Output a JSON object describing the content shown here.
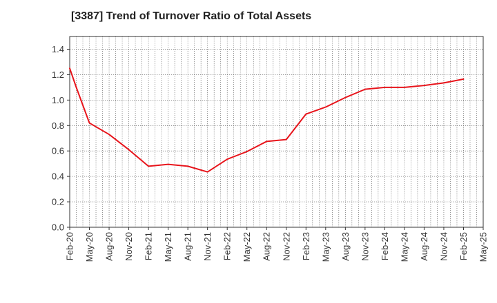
{
  "chart_data": {
    "type": "line",
    "title": "[3387]  Trend of Turnover Ratio of Total Assets",
    "xlabel": "",
    "ylabel": "",
    "ylim": [
      0,
      1.5
    ],
    "yticks": [
      "0.0",
      "0.2",
      "0.4",
      "0.6",
      "0.8",
      "1.0",
      "1.2",
      "1.4"
    ],
    "xticks": [
      "Feb-20",
      "May-20",
      "Aug-20",
      "Nov-20",
      "Feb-21",
      "May-21",
      "Aug-21",
      "Nov-21",
      "Feb-22",
      "May-22",
      "Aug-22",
      "Nov-22",
      "Feb-23",
      "May-23",
      "Aug-23",
      "Nov-23",
      "Feb-24",
      "May-24",
      "Aug-24",
      "Nov-24",
      "Feb-25",
      "May-25"
    ],
    "grid": true,
    "legend": "none",
    "series": [
      {
        "color": "#e8141b",
        "x": [
          "Feb-20",
          "Mar-20",
          "May-20",
          "Aug-20",
          "Nov-20",
          "Feb-21",
          "May-21",
          "Aug-21",
          "Nov-21",
          "Feb-22",
          "May-22",
          "Aug-22",
          "Nov-22",
          "Feb-23",
          "May-23",
          "Aug-23",
          "Nov-23",
          "Feb-24",
          "May-24",
          "Aug-24",
          "Nov-24",
          "Feb-25"
        ],
        "values": [
          1.25,
          1.1,
          0.82,
          0.73,
          0.61,
          0.48,
          0.495,
          0.48,
          0.435,
          0.535,
          0.595,
          0.675,
          0.69,
          0.89,
          0.945,
          1.02,
          1.085,
          1.1,
          1.1,
          1.115,
          1.135,
          1.165
        ]
      }
    ]
  }
}
